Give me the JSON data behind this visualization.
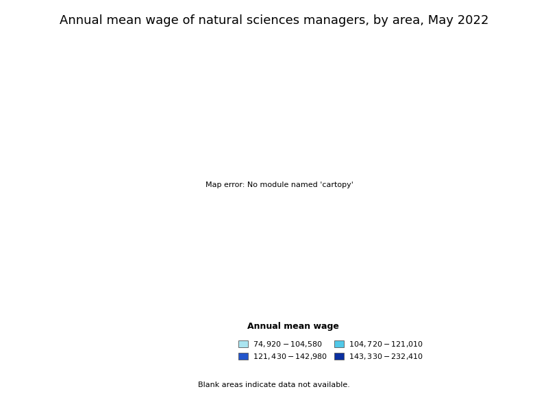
{
  "title": "Annual mean wage of natural sciences managers, by area, May 2022",
  "legend_title": "Annual mean wage",
  "legend_entries": [
    {
      "label": "$74,920 - $104,580",
      "color": "#aae4f0"
    },
    {
      "label": "$104,720 - $121,010",
      "color": "#50c8e8"
    },
    {
      "label": "$121,430 - $142,980",
      "color": "#2255cc"
    },
    {
      "label": "$143,330 - $232,410",
      "color": "#0a2fa0"
    }
  ],
  "blank_note": "Blank areas indicate data not available.",
  "background_color": "#ffffff",
  "title_fontsize": 13,
  "colors": {
    "tier1": "#aae4f0",
    "tier2": "#50c8e8",
    "tier3": "#2255cc",
    "tier4": "#0a2fa0",
    "no_data": "#ffffff",
    "border": "#666666"
  }
}
